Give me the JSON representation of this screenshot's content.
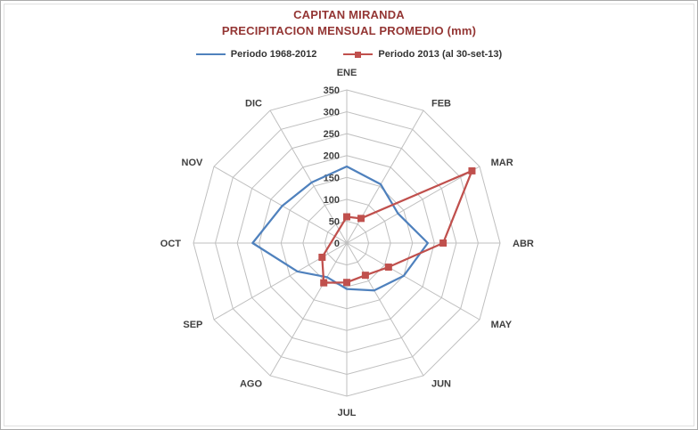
{
  "title": {
    "line1": "CAPITAN MIRANDA",
    "line2": "PRECIPITACION MENSUAL PROMEDIO (mm)",
    "color": "#943634"
  },
  "legend": {
    "items": [
      {
        "label": "Periodo 1968-2012",
        "color": "#4F81BD",
        "marker": "line"
      },
      {
        "label": "Periodo 2013 (al 30-set-13)",
        "color": "#C0504D",
        "marker": "line-square"
      }
    ]
  },
  "chart_data": {
    "type": "radar",
    "title": "CAPITAN MIRANDA - PRECIPITACION MENSUAL PROMEDIO (mm)",
    "categories": [
      "ENE",
      "FEB",
      "MAR",
      "ABR",
      "MAY",
      "JUN",
      "JUL",
      "AGO",
      "SEP",
      "OCT",
      "NOV",
      "DIC"
    ],
    "series": [
      {
        "name": "Periodo 1968-2012",
        "color": "#4F81BD",
        "marker": "none",
        "values": [
          175,
          155,
          135,
          185,
          150,
          125,
          105,
          90,
          130,
          215,
          170,
          160
        ]
      },
      {
        "name": "Periodo 2013 (al 30-set-13)",
        "color": "#C0504D",
        "marker": "square",
        "values": [
          60,
          65,
          330,
          220,
          110,
          85,
          90,
          105,
          65,
          null,
          null,
          null
        ]
      }
    ],
    "radial_axis": {
      "min": 0,
      "max": 350,
      "step": 50,
      "ticks": [
        0,
        50,
        100,
        150,
        200,
        250,
        300,
        350
      ]
    },
    "grid": true,
    "grid_color": "#BFBFBF",
    "legend_position": "top"
  }
}
